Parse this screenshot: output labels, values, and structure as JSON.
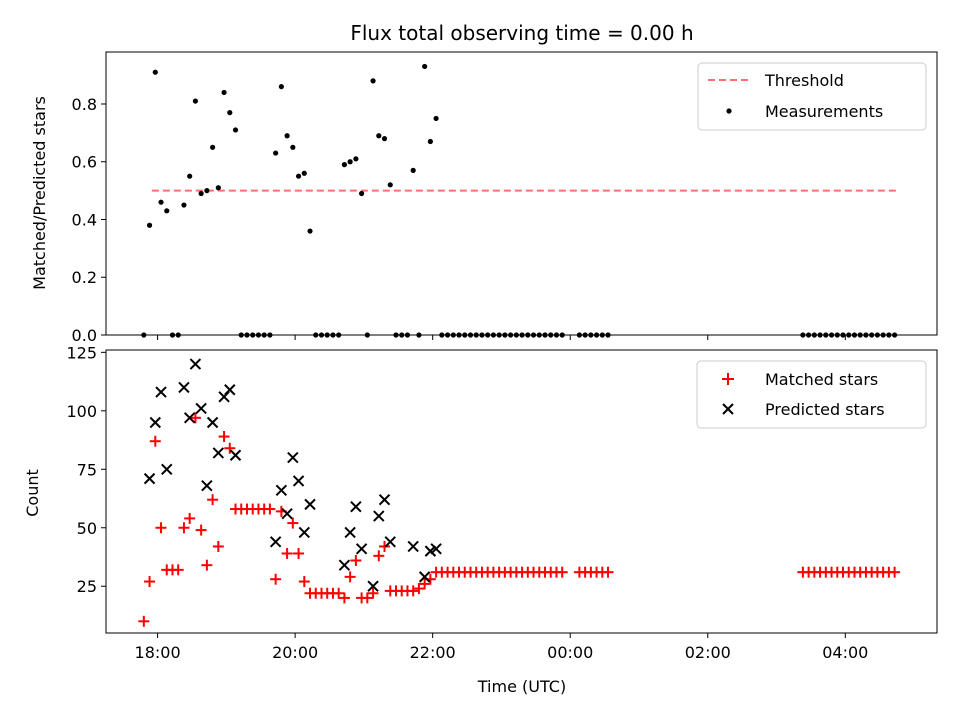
{
  "figure": {
    "title": "Flux total observing time = 0.00 h",
    "colors": {
      "threshold": "#ff6f6f",
      "measurement": "#000000",
      "matched": "#ff0000",
      "predicted": "#000000"
    }
  },
  "chart_data": [
    {
      "type": "scatter",
      "title": "Flux total observing time = 0.00 h",
      "xlabel": "",
      "ylabel": "Matched/Predicted stars",
      "ylim": [
        0,
        0.98
      ],
      "yticks": [
        0.0,
        0.2,
        0.4,
        0.6,
        0.8
      ],
      "ytick_labels": [
        "0.0",
        "0.2",
        "0.4",
        "0.6",
        "0.8"
      ],
      "legend": {
        "placement": "top-right",
        "entries": [
          "Threshold",
          "Measurements"
        ]
      },
      "threshold": {
        "name": "Threshold",
        "value": 0.5,
        "x_range": [
          "17:55",
          "04:45"
        ],
        "style": "dashed"
      },
      "series": [
        {
          "name": "Measurements",
          "marker": "dot",
          "points": [
            [
              "17:48",
              0.0
            ],
            [
              "17:53",
              0.38
            ],
            [
              "17:58",
              0.91
            ],
            [
              "18:03",
              0.46
            ],
            [
              "18:08",
              0.43
            ],
            [
              "18:13",
              0.0
            ],
            [
              "18:18",
              0.0
            ],
            [
              "18:23",
              0.45
            ],
            [
              "18:28",
              0.55
            ],
            [
              "18:33",
              0.81
            ],
            [
              "18:38",
              0.49
            ],
            [
              "18:43",
              0.5
            ],
            [
              "18:48",
              0.65
            ],
            [
              "18:53",
              0.51
            ],
            [
              "18:58",
              0.84
            ],
            [
              "19:03",
              0.77
            ],
            [
              "19:08",
              0.71
            ],
            [
              "19:13",
              0.0
            ],
            [
              "19:18",
              0.0
            ],
            [
              "19:23",
              0.0
            ],
            [
              "19:28",
              0.0
            ],
            [
              "19:33",
              0.0
            ],
            [
              "19:38",
              0.0
            ],
            [
              "19:43",
              0.63
            ],
            [
              "19:48",
              0.86
            ],
            [
              "19:53",
              0.69
            ],
            [
              "19:58",
              0.65
            ],
            [
              "20:03",
              0.55
            ],
            [
              "20:08",
              0.56
            ],
            [
              "20:13",
              0.36
            ],
            [
              "20:18",
              0.0
            ],
            [
              "20:23",
              0.0
            ],
            [
              "20:28",
              0.0
            ],
            [
              "20:33",
              0.0
            ],
            [
              "20:38",
              0.0
            ],
            [
              "20:43",
              0.59
            ],
            [
              "20:48",
              0.6
            ],
            [
              "20:53",
              0.61
            ],
            [
              "20:58",
              0.49
            ],
            [
              "21:03",
              0.0
            ],
            [
              "21:08",
              0.88
            ],
            [
              "21:13",
              0.69
            ],
            [
              "21:18",
              0.68
            ],
            [
              "21:23",
              0.52
            ],
            [
              "21:28",
              0.0
            ],
            [
              "21:33",
              0.0
            ],
            [
              "21:38",
              0.0
            ],
            [
              "21:43",
              0.57
            ],
            [
              "21:48",
              0.0
            ],
            [
              "21:53",
              0.93
            ],
            [
              "21:58",
              0.67
            ],
            [
              "22:03",
              0.75
            ],
            [
              "22:08",
              0.0
            ],
            [
              "22:13",
              0.0
            ],
            [
              "22:18",
              0.0
            ],
            [
              "22:23",
              0.0
            ],
            [
              "22:28",
              0.0
            ],
            [
              "22:33",
              0.0
            ],
            [
              "22:38",
              0.0
            ],
            [
              "22:43",
              0.0
            ],
            [
              "22:48",
              0.0
            ],
            [
              "22:53",
              0.0
            ],
            [
              "22:58",
              0.0
            ],
            [
              "23:03",
              0.0
            ],
            [
              "23:08",
              0.0
            ],
            [
              "23:13",
              0.0
            ],
            [
              "23:18",
              0.0
            ],
            [
              "23:23",
              0.0
            ],
            [
              "23:28",
              0.0
            ],
            [
              "23:33",
              0.0
            ],
            [
              "23:38",
              0.0
            ],
            [
              "23:43",
              0.0
            ],
            [
              "23:48",
              0.0
            ],
            [
              "23:53",
              0.0
            ],
            [
              "00:08",
              0.0
            ],
            [
              "00:13",
              0.0
            ],
            [
              "00:18",
              0.0
            ],
            [
              "00:23",
              0.0
            ],
            [
              "00:28",
              0.0
            ],
            [
              "00:33",
              0.0
            ],
            [
              "03:23",
              0.0
            ],
            [
              "03:28",
              0.0
            ],
            [
              "03:33",
              0.0
            ],
            [
              "03:38",
              0.0
            ],
            [
              "03:43",
              0.0
            ],
            [
              "03:48",
              0.0
            ],
            [
              "03:53",
              0.0
            ],
            [
              "03:58",
              0.0
            ],
            [
              "04:03",
              0.0
            ],
            [
              "04:08",
              0.0
            ],
            [
              "04:13",
              0.0
            ],
            [
              "04:18",
              0.0
            ],
            [
              "04:23",
              0.0
            ],
            [
              "04:28",
              0.0
            ],
            [
              "04:33",
              0.0
            ],
            [
              "04:38",
              0.0
            ],
            [
              "04:43",
              0.0
            ]
          ]
        }
      ]
    },
    {
      "type": "scatter",
      "title": "",
      "xlabel": "Time (UTC)",
      "ylabel": "Count",
      "ylim": [
        5,
        126
      ],
      "yticks": [
        25,
        50,
        75,
        100,
        125
      ],
      "ytick_labels": [
        "25",
        "50",
        "75",
        "100",
        "125"
      ],
      "xlim": [
        "17:15",
        "05:20"
      ],
      "xticks": [
        "18:00",
        "20:00",
        "22:00",
        "00:00",
        "02:00",
        "04:00"
      ],
      "legend": {
        "placement": "top-right",
        "entries": [
          "Matched stars",
          "Predicted stars"
        ]
      },
      "series": [
        {
          "name": "Matched stars",
          "marker": "plus",
          "points": [
            [
              "17:48",
              10
            ],
            [
              "17:53",
              27
            ],
            [
              "17:58",
              87
            ],
            [
              "18:03",
              50
            ],
            [
              "18:08",
              32
            ],
            [
              "18:13",
              32
            ],
            [
              "18:18",
              32
            ],
            [
              "18:23",
              50
            ],
            [
              "18:28",
              54
            ],
            [
              "18:33",
              97
            ],
            [
              "18:38",
              49
            ],
            [
              "18:43",
              34
            ],
            [
              "18:48",
              62
            ],
            [
              "18:53",
              42
            ],
            [
              "18:58",
              89
            ],
            [
              "19:03",
              84
            ],
            [
              "19:08",
              58
            ],
            [
              "19:13",
              58
            ],
            [
              "19:18",
              58
            ],
            [
              "19:23",
              58
            ],
            [
              "19:28",
              58
            ],
            [
              "19:33",
              58
            ],
            [
              "19:38",
              58
            ],
            [
              "19:43",
              28
            ],
            [
              "19:48",
              57
            ],
            [
              "19:53",
              39
            ],
            [
              "19:58",
              52
            ],
            [
              "20:03",
              39
            ],
            [
              "20:08",
              27
            ],
            [
              "20:13",
              22
            ],
            [
              "20:18",
              22
            ],
            [
              "20:23",
              22
            ],
            [
              "20:28",
              22
            ],
            [
              "20:33",
              22
            ],
            [
              "20:38",
              22
            ],
            [
              "20:43",
              20
            ],
            [
              "20:48",
              29
            ],
            [
              "20:53",
              36
            ],
            [
              "20:58",
              20
            ],
            [
              "21:03",
              20
            ],
            [
              "21:08",
              22
            ],
            [
              "21:13",
              38
            ],
            [
              "21:18",
              42
            ],
            [
              "21:23",
              23
            ],
            [
              "21:28",
              23
            ],
            [
              "21:33",
              23
            ],
            [
              "21:38",
              23
            ],
            [
              "21:43",
              23
            ],
            [
              "21:48",
              24
            ],
            [
              "21:53",
              26
            ],
            [
              "21:58",
              28
            ],
            [
              "22:03",
              31
            ],
            [
              "22:08",
              31
            ],
            [
              "22:13",
              31
            ],
            [
              "22:18",
              31
            ],
            [
              "22:23",
              31
            ],
            [
              "22:28",
              31
            ],
            [
              "22:33",
              31
            ],
            [
              "22:38",
              31
            ],
            [
              "22:43",
              31
            ],
            [
              "22:48",
              31
            ],
            [
              "22:53",
              31
            ],
            [
              "22:58",
              31
            ],
            [
              "23:03",
              31
            ],
            [
              "23:08",
              31
            ],
            [
              "23:13",
              31
            ],
            [
              "23:18",
              31
            ],
            [
              "23:23",
              31
            ],
            [
              "23:28",
              31
            ],
            [
              "23:33",
              31
            ],
            [
              "23:38",
              31
            ],
            [
              "23:43",
              31
            ],
            [
              "23:48",
              31
            ],
            [
              "23:53",
              31
            ],
            [
              "00:08",
              31
            ],
            [
              "00:13",
              31
            ],
            [
              "00:18",
              31
            ],
            [
              "00:23",
              31
            ],
            [
              "00:28",
              31
            ],
            [
              "00:33",
              31
            ],
            [
              "03:23",
              31
            ],
            [
              "03:28",
              31
            ],
            [
              "03:33",
              31
            ],
            [
              "03:38",
              31
            ],
            [
              "03:43",
              31
            ],
            [
              "03:48",
              31
            ],
            [
              "03:53",
              31
            ],
            [
              "03:58",
              31
            ],
            [
              "04:03",
              31
            ],
            [
              "04:08",
              31
            ],
            [
              "04:13",
              31
            ],
            [
              "04:18",
              31
            ],
            [
              "04:23",
              31
            ],
            [
              "04:28",
              31
            ],
            [
              "04:33",
              31
            ],
            [
              "04:38",
              31
            ],
            [
              "04:43",
              31
            ]
          ]
        },
        {
          "name": "Predicted stars",
          "marker": "x",
          "points": [
            [
              "17:53",
              71
            ],
            [
              "17:58",
              95
            ],
            [
              "18:03",
              108
            ],
            [
              "18:08",
              75
            ],
            [
              "18:23",
              110
            ],
            [
              "18:28",
              97
            ],
            [
              "18:33",
              120
            ],
            [
              "18:38",
              101
            ],
            [
              "18:43",
              68
            ],
            [
              "18:48",
              95
            ],
            [
              "18:53",
              82
            ],
            [
              "18:58",
              106
            ],
            [
              "19:03",
              109
            ],
            [
              "19:08",
              81
            ],
            [
              "19:43",
              44
            ],
            [
              "19:48",
              66
            ],
            [
              "19:53",
              56
            ],
            [
              "19:58",
              80
            ],
            [
              "20:03",
              70
            ],
            [
              "20:08",
              48
            ],
            [
              "20:13",
              60
            ],
            [
              "20:43",
              34
            ],
            [
              "20:48",
              48
            ],
            [
              "20:53",
              59
            ],
            [
              "20:58",
              41
            ],
            [
              "21:08",
              25
            ],
            [
              "21:13",
              55
            ],
            [
              "21:18",
              62
            ],
            [
              "21:23",
              44
            ],
            [
              "21:43",
              42
            ],
            [
              "21:53",
              29
            ],
            [
              "21:58",
              40
            ],
            [
              "22:03",
              41
            ]
          ]
        }
      ]
    }
  ]
}
